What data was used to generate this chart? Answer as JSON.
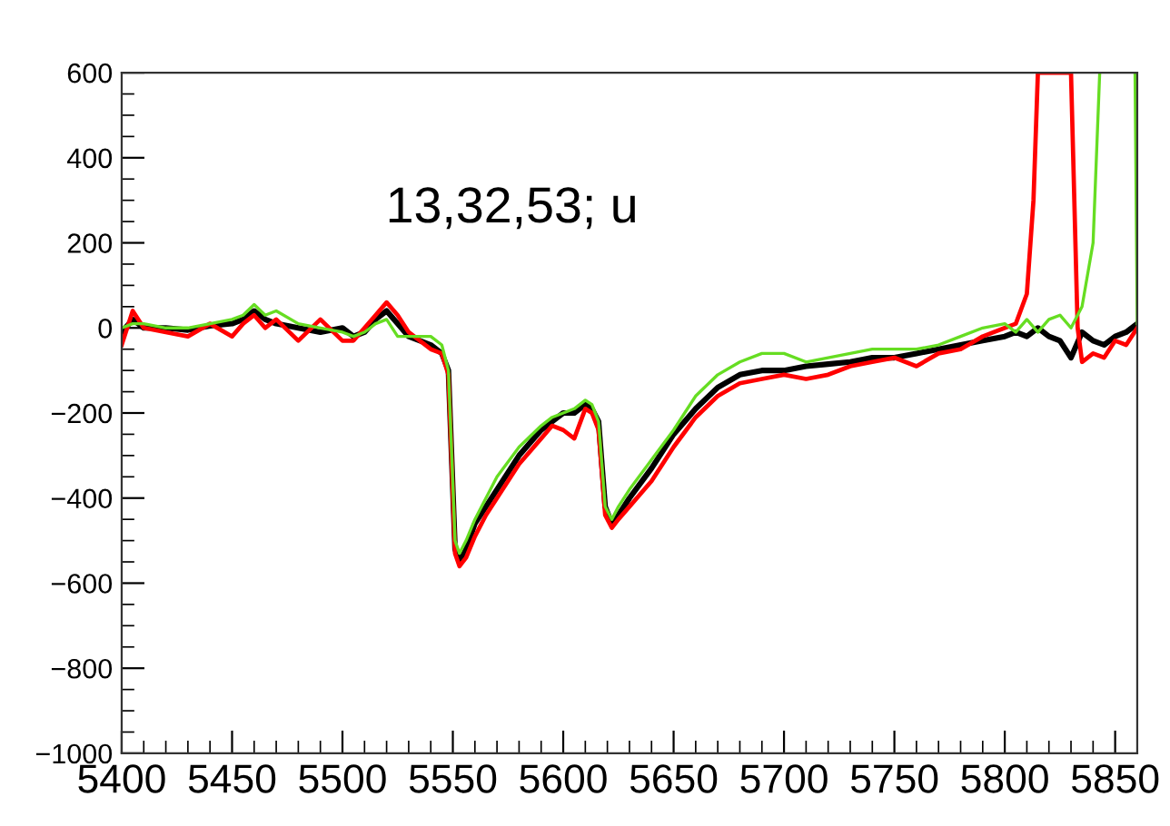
{
  "chart_data": {
    "type": "line",
    "annotations": [
      "13,32,53; u"
    ],
    "xlim": [
      5400,
      5860
    ],
    "xticks": [
      5400,
      5450,
      5500,
      5550,
      5600,
      5650,
      5700,
      5750,
      5800,
      5850
    ],
    "ylim": [
      -1000,
      600
    ],
    "yticks": [
      {
        "value": -1000,
        "label": "−1000"
      },
      {
        "value": -800,
        "label": "−800"
      },
      {
        "value": -600,
        "label": "−600"
      },
      {
        "value": -400,
        "label": "−400"
      },
      {
        "value": -200,
        "label": "−200"
      },
      0,
      200,
      400,
      600
    ],
    "grid": false,
    "legend": false,
    "series": [
      {
        "color": "#000000",
        "x": [
          5400,
          5405,
          5410,
          5420,
          5430,
          5440,
          5450,
          5455,
          5460,
          5465,
          5470,
          5480,
          5490,
          5500,
          5505,
          5510,
          5515,
          5520,
          5525,
          5530,
          5540,
          5545,
          5548,
          5551,
          5553,
          5556,
          5560,
          5565,
          5570,
          5580,
          5590,
          5595,
          5600,
          5605,
          5610,
          5613,
          5616,
          5619,
          5622,
          5625,
          5630,
          5640,
          5650,
          5660,
          5670,
          5680,
          5690,
          5700,
          5710,
          5720,
          5730,
          5740,
          5750,
          5760,
          5770,
          5780,
          5790,
          5800,
          5805,
          5810,
          5815,
          5820,
          5825,
          5830,
          5835,
          5840,
          5845,
          5850,
          5855,
          5860
        ],
        "values": [
          -10,
          20,
          0,
          0,
          -5,
          5,
          10,
          20,
          40,
          20,
          10,
          0,
          -10,
          0,
          -20,
          -10,
          20,
          40,
          10,
          -20,
          -40,
          -60,
          -100,
          -520,
          -550,
          -520,
          -460,
          -420,
          -380,
          -300,
          -240,
          -220,
          -200,
          -200,
          -180,
          -190,
          -220,
          -420,
          -460,
          -440,
          -400,
          -330,
          -250,
          -190,
          -140,
          -110,
          -100,
          -100,
          -90,
          -85,
          -80,
          -70,
          -70,
          -60,
          -50,
          -40,
          -30,
          -20,
          -10,
          -20,
          0,
          -20,
          -30,
          -70,
          -10,
          -30,
          -40,
          -20,
          -10,
          10
        ]
      },
      {
        "color": "#ff0000",
        "x": [
          5400,
          5405,
          5410,
          5420,
          5430,
          5440,
          5450,
          5455,
          5460,
          5465,
          5470,
          5480,
          5490,
          5500,
          5505,
          5510,
          5515,
          5520,
          5525,
          5530,
          5540,
          5545,
          5548,
          5551,
          5553,
          5556,
          5560,
          5565,
          5570,
          5580,
          5590,
          5595,
          5600,
          5605,
          5610,
          5613,
          5616,
          5619,
          5622,
          5625,
          5630,
          5640,
          5650,
          5660,
          5670,
          5680,
          5690,
          5700,
          5710,
          5720,
          5730,
          5740,
          5750,
          5760,
          5770,
          5780,
          5790,
          5800,
          5805,
          5810,
          5813,
          5815,
          5830,
          5833,
          5835,
          5840,
          5845,
          5850,
          5855,
          5860
        ],
        "values": [
          -40,
          40,
          0,
          -10,
          -20,
          10,
          -20,
          10,
          30,
          0,
          20,
          -30,
          20,
          -30,
          -30,
          0,
          30,
          60,
          30,
          -10,
          -50,
          -60,
          -110,
          -530,
          -560,
          -540,
          -490,
          -440,
          -400,
          -320,
          -260,
          -230,
          -240,
          -260,
          -190,
          -200,
          -240,
          -440,
          -470,
          -450,
          -420,
          -360,
          -280,
          -210,
          -160,
          -130,
          -120,
          -110,
          -120,
          -110,
          -90,
          -80,
          -70,
          -90,
          -60,
          -50,
          -20,
          0,
          10,
          80,
          300,
          600,
          600,
          0,
          -80,
          -60,
          -70,
          -30,
          -40,
          0
        ]
      },
      {
        "color": "#66dd22",
        "x": [
          5400,
          5405,
          5410,
          5420,
          5430,
          5440,
          5450,
          5455,
          5460,
          5465,
          5470,
          5480,
          5490,
          5500,
          5505,
          5510,
          5515,
          5520,
          5525,
          5530,
          5540,
          5545,
          5548,
          5551,
          5553,
          5556,
          5560,
          5565,
          5570,
          5580,
          5590,
          5595,
          5600,
          5605,
          5610,
          5613,
          5616,
          5619,
          5622,
          5625,
          5630,
          5640,
          5650,
          5660,
          5670,
          5680,
          5690,
          5700,
          5710,
          5720,
          5730,
          5740,
          5750,
          5760,
          5770,
          5780,
          5790,
          5800,
          5805,
          5810,
          5815,
          5820,
          5825,
          5830,
          5835,
          5840,
          5843,
          5850,
          5859,
          5860
        ],
        "values": [
          0,
          10,
          10,
          0,
          0,
          10,
          20,
          30,
          55,
          30,
          40,
          10,
          0,
          -10,
          -20,
          -10,
          10,
          20,
          -20,
          -20,
          -20,
          -40,
          -100,
          -500,
          -530,
          -500,
          -450,
          -400,
          -350,
          -280,
          -230,
          -210,
          -200,
          -190,
          -170,
          -180,
          -220,
          -420,
          -450,
          -420,
          -380,
          -310,
          -240,
          -160,
          -110,
          -80,
          -60,
          -60,
          -80,
          -70,
          -60,
          -50,
          -50,
          -50,
          -40,
          -20,
          0,
          10,
          -10,
          20,
          -10,
          20,
          30,
          0,
          50,
          200,
          600,
          null,
          600,
          10
        ]
      }
    ]
  }
}
